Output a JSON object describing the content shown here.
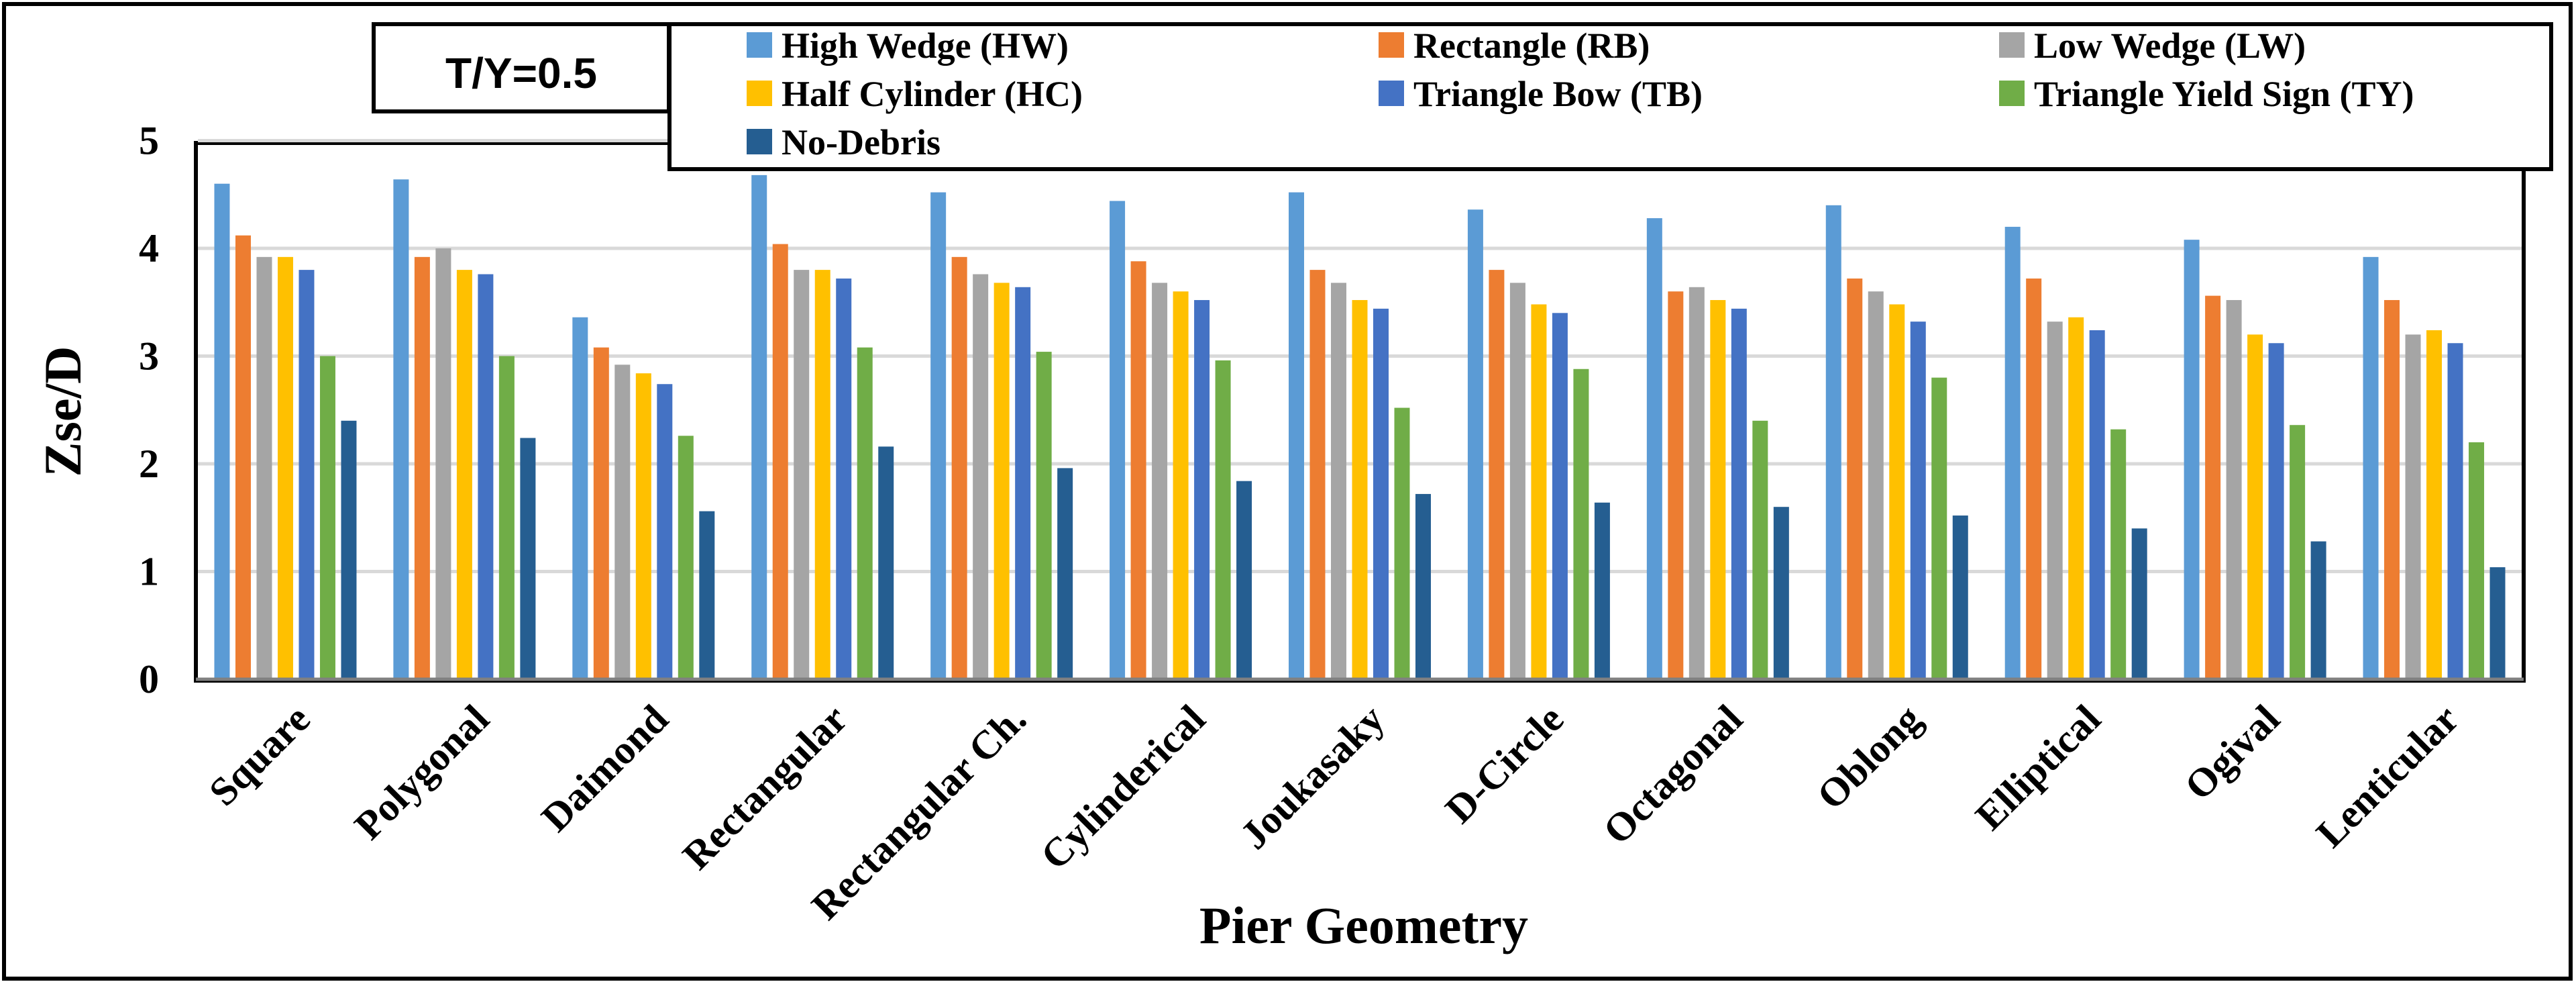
{
  "chart_data": {
    "type": "bar",
    "annotation": "T/Y=0.5",
    "xlabel": "Pier Geometry",
    "ylabel": "Zse/D",
    "ylim": [
      0,
      5
    ],
    "yticks": [
      "0",
      "1",
      "2",
      "3",
      "4",
      "5"
    ],
    "grid": true,
    "legend_position": "top",
    "categories": [
      "Square",
      "Polygonal",
      "Daimond",
      "Rectangular",
      "Rectangular Ch.",
      "Cylinderical",
      "Joukasaky",
      "D-Circle",
      "Octagonal",
      "Oblong",
      "Elliptical",
      "Ogival",
      "Lenticular"
    ],
    "series": [
      {
        "name": "High Wedge (HW)",
        "color": "#5B9BD5",
        "values": [
          4.6,
          4.64,
          3.36,
          4.68,
          4.52,
          4.44,
          4.52,
          4.36,
          4.28,
          4.4,
          4.2,
          4.08,
          3.92
        ]
      },
      {
        "name": "Rectangle (RB)",
        "color": "#ED7D31",
        "values": [
          4.12,
          3.92,
          3.08,
          4.04,
          3.92,
          3.88,
          3.8,
          3.8,
          3.6,
          3.72,
          3.72,
          3.56,
          3.52
        ]
      },
      {
        "name": "Low Wedge (LW)",
        "color": "#A5A5A5",
        "values": [
          3.92,
          4.0,
          2.92,
          3.8,
          3.76,
          3.68,
          3.68,
          3.68,
          3.64,
          3.6,
          3.32,
          3.52,
          3.2
        ]
      },
      {
        "name": "Half Cylinder (HC)",
        "color": "#FFC000",
        "values": [
          3.92,
          3.8,
          2.84,
          3.8,
          3.68,
          3.6,
          3.52,
          3.48,
          3.52,
          3.48,
          3.36,
          3.2,
          3.24
        ]
      },
      {
        "name": "Triangle Bow (TB)",
        "color": "#4472C4",
        "values": [
          3.8,
          3.76,
          2.74,
          3.72,
          3.64,
          3.52,
          3.44,
          3.4,
          3.44,
          3.32,
          3.24,
          3.12,
          3.12
        ]
      },
      {
        "name": "Triangle Yield Sign (TY)",
        "color": "#70AD47",
        "values": [
          3.0,
          3.0,
          2.26,
          3.08,
          3.04,
          2.96,
          2.52,
          2.88,
          2.4,
          2.8,
          2.32,
          2.36,
          2.2
        ]
      },
      {
        "name": "No-Debris",
        "color": "#255E91",
        "values": [
          2.4,
          2.24,
          1.56,
          2.16,
          1.96,
          1.84,
          1.72,
          1.64,
          1.6,
          1.52,
          1.4,
          1.28,
          1.04
        ]
      }
    ]
  }
}
